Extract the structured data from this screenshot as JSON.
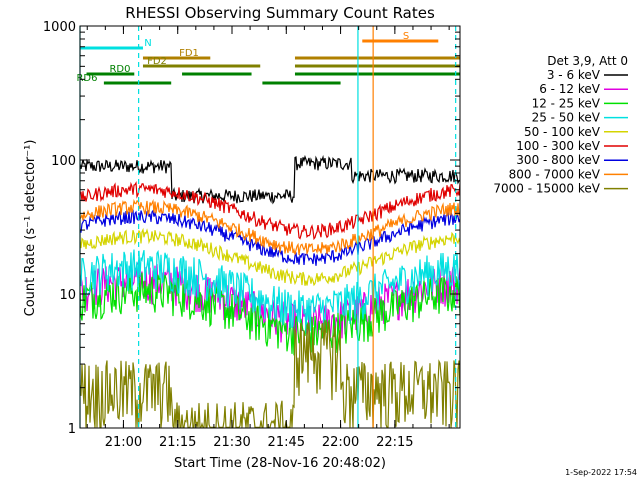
{
  "footer_timestamp": "1-Sep-2022 17:54",
  "chart_data": {
    "type": "line",
    "title": "RHESSI Observing Summary Count Rates",
    "xlabel": "Start Time (28-Nov-16 20:48:02)",
    "ylabel": "Count Rate (s⁻¹ detector⁻¹)",
    "y_scale": "log",
    "x_range_minutes": [
      20.8,
      22.55
    ],
    "y_range": [
      1,
      1000
    ],
    "x_tick_labels": [
      "21:00",
      "21:15",
      "21:30",
      "21:45",
      "22:00",
      "22:15"
    ],
    "x_tick_values": [
      21.0,
      21.25,
      21.5,
      21.75,
      22.0,
      22.25
    ],
    "y_tick_labels": [
      "1",
      "10",
      "100",
      "1000"
    ],
    "y_tick_values": [
      1,
      10,
      100,
      1000
    ],
    "legend_title": "Det 3,9, Att 0",
    "legend_position": "right",
    "series": [
      {
        "name": "3 - 6 keV",
        "color": "#000000",
        "base": 90
      },
      {
        "name": "6 - 12 keV",
        "color": "#e000e0",
        "base": 9.5
      },
      {
        "name": "12 - 25 keV",
        "color": "#00e000",
        "base": 8
      },
      {
        "name": "25 - 50 keV",
        "color": "#00e0e0",
        "base": 12
      },
      {
        "name": "50 - 100 keV",
        "color": "#d4d400",
        "base": 20
      },
      {
        "name": "100 - 300 keV",
        "color": "#e00000",
        "base": 45
      },
      {
        "name": "300 - 800 keV",
        "color": "#0000e0",
        "base": 28
      },
      {
        "name": "800 - 7000 keV",
        "color": "#ff8000",
        "base": 33
      },
      {
        "name": "7000 - 15000 keV",
        "color": "#808000",
        "base": 2
      }
    ],
    "flags": [
      {
        "label": "N",
        "color": "#00e0e0",
        "segments": [
          [
            20.8,
            21.09
          ]
        ]
      },
      {
        "label": "FD1",
        "color": "#b08000",
        "segments": [
          [
            21.09,
            21.4
          ],
          [
            21.79,
            22.55
          ]
        ]
      },
      {
        "label": "FD2",
        "color": "#808000",
        "segments": [
          [
            21.09,
            21.63
          ],
          [
            21.79,
            22.55
          ]
        ]
      },
      {
        "label": "RD0",
        "color": "#008000",
        "segments": [
          [
            20.83,
            21.05
          ],
          [
            21.27,
            21.59
          ],
          [
            21.79,
            22.55
          ]
        ]
      },
      {
        "label": "RD6",
        "color": "#008000",
        "segments": [
          [
            20.91,
            21.22
          ],
          [
            21.64,
            22.0
          ]
        ]
      },
      {
        "label": "S",
        "color": "#ff8000",
        "segments": [
          [
            22.1,
            22.45
          ]
        ]
      }
    ],
    "vertical_markers": [
      {
        "x": 20.8,
        "color": "#00e0e0",
        "style": "solid"
      },
      {
        "x": 21.07,
        "color": "#00e0e0",
        "style": "dashed"
      },
      {
        "x": 22.08,
        "color": "#00e0e0",
        "style": "solid"
      },
      {
        "x": 22.15,
        "color": "#ff8000",
        "style": "solid"
      },
      {
        "x": 22.53,
        "color": "#00e0e0",
        "style": "dashed"
      }
    ]
  }
}
